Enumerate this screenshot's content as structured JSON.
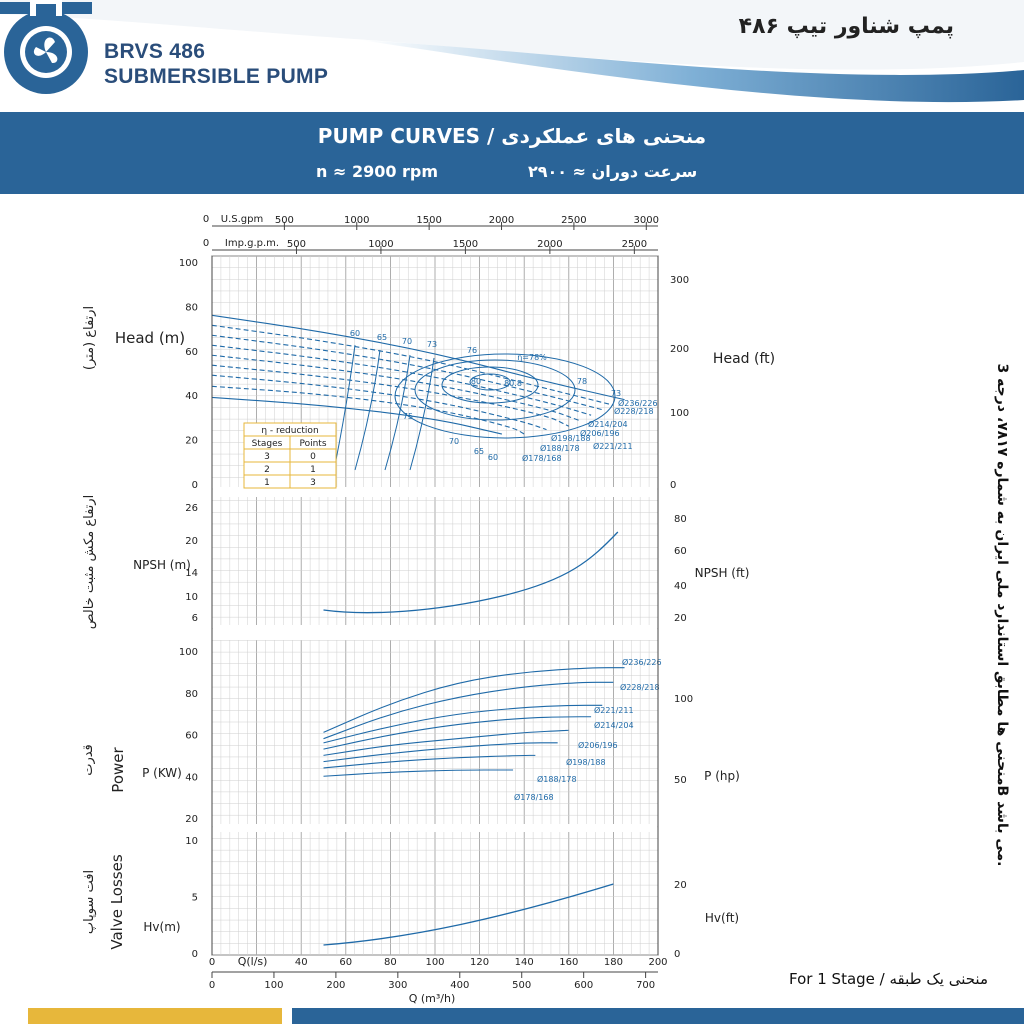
{
  "header": {
    "brand_line1": "BRVS 486",
    "brand_line2": "SUBMERSIBLE PUMP",
    "fa_title": "پمپ شناور تیپ ۴۸۶",
    "accent_color": "#2a6498",
    "gold_color": "#e7b73b",
    "logo_icon": "fan-logo-icon"
  },
  "band": {
    "title_en": "PUMP CURVES  /  ",
    "title_fa": "منحنی های عملکردی",
    "speed_en": "n ≈ 2900 rpm",
    "speed_fa": "سرعت دوران ≈ ۲۹۰۰"
  },
  "side_note": "منحنی ها مطابق استاندارد ملی ایران به شماره ۷۸۱۷، درجه 3B می باشد.",
  "footer_note": "For 1 Stage /  منحنی یک طبقه",
  "chart_data": {
    "type": "line",
    "top_axes": [
      {
        "label": "U.S.gpm",
        "zero": "0",
        "ticks": [
          "500",
          "1000",
          "1500",
          "2000",
          "2500",
          "3000"
        ],
        "max": 3000
      },
      {
        "label": "Imp.g.p.m.",
        "zero": "0",
        "ticks": [
          "500",
          "1000",
          "1500",
          "2000",
          "2500"
        ],
        "max": 2500
      }
    ],
    "bottom_axes": [
      {
        "label": "Q(l/s)",
        "ticks": [
          "0",
          "20",
          "40",
          "60",
          "80",
          "100",
          "120",
          "140",
          "160",
          "180",
          "200"
        ],
        "xlim": [
          0,
          200
        ]
      },
      {
        "label": "Q (m³/h)",
        "ticks": [
          "0",
          "100",
          "200",
          "300",
          "400",
          "500",
          "600",
          "700"
        ],
        "xlim": [
          0,
          720
        ]
      }
    ],
    "grid": true,
    "panels": {
      "head": {
        "ylabel_left": "Head (m)",
        "ylabel_right": "Head (ft)",
        "fa_label": "ارتفاع (متر)",
        "ylim": [
          0,
          100
        ],
        "left_ticks": [
          "0",
          "20",
          "40",
          "60",
          "80",
          "100"
        ],
        "right_ticks": [
          "0",
          "100",
          "200",
          "300"
        ],
        "diameters": [
          {
            "name": "Ø236/226",
            "x": [
              0,
              50,
              100,
              150,
              185
            ],
            "y": [
              76,
              68.5,
              59,
              46,
              38
            ],
            "dashed": false
          },
          {
            "name": "Ø228/218",
            "x": [
              0,
              50,
              100,
              150,
              180
            ],
            "y": [
              71.5,
              64.5,
              55.5,
              43,
              35.5
            ],
            "dashed": true
          },
          {
            "name": "Ø221/211",
            "x": [
              0,
              50,
              100,
              150,
              175
            ],
            "y": [
              67,
              60.5,
              52,
              40,
              33.5
            ],
            "dashed": true
          },
          {
            "name": "Ø214/204",
            "x": [
              0,
              50,
              100,
              150,
              170
            ],
            "y": [
              62.5,
              56.5,
              48.5,
              37,
              31
            ],
            "dashed": true
          },
          {
            "name": "Ø206/196",
            "x": [
              0,
              50,
              100,
              150,
              165
            ],
            "y": [
              58,
              52.5,
              45,
              34,
              28.5
            ],
            "dashed": true
          },
          {
            "name": "Ø198/188",
            "x": [
              0,
              50,
              100,
              150,
              160
            ],
            "y": [
              53.5,
              48.5,
              41.5,
              31,
              26
            ],
            "dashed": true
          },
          {
            "name": "Ø188/178",
            "x": [
              0,
              50,
              100,
              140,
              150
            ],
            "y": [
              49,
              44.5,
              37.5,
              28,
              24.5
            ],
            "dashed": true
          },
          {
            "name": "Ø178/168",
            "x": [
              0,
              50,
              100,
              135,
              140
            ],
            "y": [
              44,
              40.5,
              34,
              25.5,
              22.5
            ],
            "dashed": true
          },
          {
            "name": "",
            "x": [
              0,
              50,
              100,
              130
            ],
            "y": [
              39,
              35.5,
              29.5,
              22.5
            ],
            "dashed": false
          }
        ],
        "efficiency_labels": [
          "60",
          "65",
          "70",
          "73",
          "76",
          "78",
          "80",
          "80.8",
          "η=78%",
          "73",
          "75",
          "70",
          "65",
          "60"
        ],
        "eta_table": {
          "title": "η - reduction",
          "headers": [
            "Stages",
            "Points"
          ],
          "rows": [
            [
              "3",
              "0"
            ],
            [
              "2",
              "1"
            ],
            [
              "1",
              "3"
            ]
          ]
        }
      },
      "npsh": {
        "ylabel_left": "NPSH (m)",
        "ylabel_right": "NPSH (ft)",
        "fa_label": "ارتفاع مکش مثبت خالص",
        "left_ticks": [
          "6",
          "10",
          "14",
          "20",
          "26"
        ],
        "right_ticks": [
          "20",
          "40",
          "60",
          "80"
        ],
        "ylim": [
          2,
          28
        ],
        "curve": {
          "x": [
            50,
            60,
            80,
            100,
            120,
            140,
            160,
            180
          ],
          "y": [
            8.8,
            8.5,
            8.8,
            10,
            12,
            14.8,
            18.5,
            23
          ]
        }
      },
      "power": {
        "ylabel_left": "P (KW)",
        "ylabel_right": "P (hp)",
        "fa_label": "قدرت",
        "en_label": "Power",
        "left_ticks": [
          "20",
          "40",
          "60",
          "80",
          "100"
        ],
        "right_ticks": [
          "50",
          "100"
        ],
        "ylim": [
          10,
          110
        ],
        "curves": [
          {
            "name": "Ø236/226",
            "x": [
              50,
              80,
              110,
              140,
              170,
              185
            ],
            "y": [
              61,
              75,
              85,
              90,
              92,
              92
            ]
          },
          {
            "name": "Ø228/218",
            "x": [
              50,
              80,
              110,
              140,
              165,
              180
            ],
            "y": [
              58,
              70,
              78,
              83,
              85,
              85
            ]
          },
          {
            "name": "Ø221/211",
            "x": [
              50,
              80,
              110,
              140,
              160,
              175
            ],
            "y": [
              56,
              64,
              70,
              73,
              74,
              74
            ]
          },
          {
            "name": "Ø214/204",
            "x": [
              50,
              80,
              110,
              140,
              160,
              170
            ],
            "y": [
              53,
              60,
              65,
              68,
              68.5,
              68.5
            ]
          },
          {
            "name": "Ø206/196",
            "x": [
              50,
              80,
              110,
              140,
              160
            ],
            "y": [
              50,
              55,
              58,
              61,
              62
            ]
          },
          {
            "name": "Ø198/188",
            "x": [
              50,
              80,
              110,
              140,
              155
            ],
            "y": [
              47,
              51,
              54,
              56,
              56
            ]
          },
          {
            "name": "Ø188/178",
            "x": [
              50,
              80,
              110,
              140,
              145
            ],
            "y": [
              44,
              47,
              49,
              50,
              50
            ]
          },
          {
            "name": "Ø178/168",
            "x": [
              50,
              80,
              110,
              135
            ],
            "y": [
              40,
              42,
              43,
              43
            ]
          }
        ]
      },
      "valve": {
        "ylabel_left": "Hv(m)",
        "ylabel_right": "Hv(ft)",
        "fa_label": "افت سوپاپ",
        "en_label": "Valve Losses",
        "left_ticks": [
          "0",
          "5",
          "10"
        ],
        "right_ticks": [
          "0",
          "20"
        ],
        "ylim": [
          0,
          10
        ],
        "curve": {
          "x": [
            50,
            80,
            110,
            140,
            165,
            180
          ],
          "y": [
            0.6,
            1.5,
            3.0,
            4.6,
            5.9,
            7.0
          ]
        }
      }
    }
  }
}
